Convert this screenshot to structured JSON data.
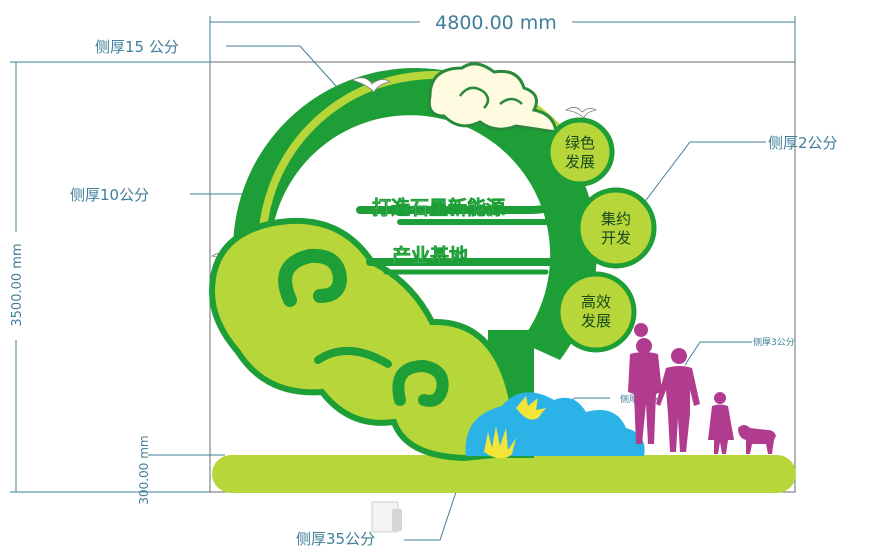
{
  "dimensions": {
    "width": "4800.00 mm",
    "height": "3500.00 mm",
    "base_height": "300.00 mm"
  },
  "callouts": {
    "side_15": "侧厚15 公分",
    "side_10": "侧厚10公分",
    "side_2": "侧厚2公分",
    "side_3": "侧厚3公分",
    "side_cloud": "侧厚3公分",
    "side_35": "侧厚35公分"
  },
  "slogan": {
    "line1": "打造石墨新能源",
    "line2": "产业基地"
  },
  "badges": [
    {
      "line1": "绿色",
      "line2": "发展"
    },
    {
      "line1": "集约",
      "line2": "开发"
    },
    {
      "line1": "高效",
      "line2": "发展"
    }
  ],
  "colors": {
    "dark_green": "#1e9e36",
    "lime": "#b6d63a",
    "cream": "#fffbe0",
    "sky_blue": "#2bb3e8",
    "magenta": "#b13c8f",
    "dimension": "#3f7f9a"
  }
}
